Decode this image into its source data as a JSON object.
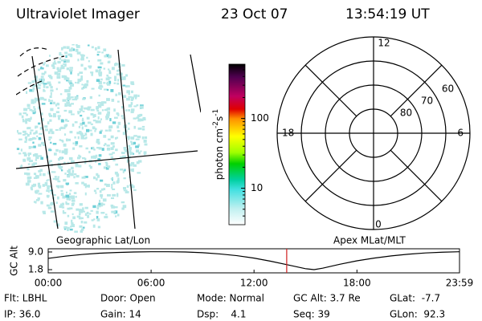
{
  "header": {
    "instrument": "Ultraviolet Imager",
    "date": "23 Oct 07",
    "time": "13:54:19 UT"
  },
  "image_panel": {
    "label": "Geographic Lat/Lon"
  },
  "colorbar": {
    "label": [
      "photon cm",
      "-2",
      "s",
      "-1"
    ],
    "scale": "log",
    "lim": [
      3,
      600
    ],
    "ticks": [
      10,
      100
    ]
  },
  "polar": {
    "label": "Apex MLat/MLT",
    "rlim": [
      90,
      50
    ],
    "lat_rings": [
      80,
      70,
      60
    ],
    "mlt_labels": [
      "12",
      "6",
      "0",
      "18"
    ]
  },
  "chart_data": {
    "type": "line",
    "ylabel": "GC Alt",
    "color": "#000000",
    "x": [
      0,
      1,
      2,
      3,
      4,
      5,
      6,
      7,
      8,
      9,
      10,
      11,
      12,
      13,
      14,
      15,
      15.5,
      16,
      17,
      18,
      19,
      20,
      21,
      22,
      23,
      23.98
    ],
    "values": [
      6.4,
      7.3,
      8.0,
      8.5,
      8.8,
      9.0,
      9.1,
      9.1,
      9.0,
      8.7,
      8.2,
      7.5,
      6.5,
      5.2,
      3.7,
      2.2,
      1.8,
      2.4,
      4.0,
      5.4,
      6.5,
      7.4,
      8.1,
      8.6,
      8.9,
      9.1
    ],
    "marker_x": 13.905,
    "marker_color": "#d02020",
    "xlim": [
      0,
      23.98
    ],
    "xticks": [
      {
        "value": 0,
        "label": "00:00"
      },
      {
        "value": 6,
        "label": "06:00"
      },
      {
        "value": 12,
        "label": "12:00"
      },
      {
        "value": 18,
        "label": "18:00"
      },
      {
        "value": 23.98,
        "label": "23:59"
      }
    ],
    "ylim": [
      0.5,
      10.3
    ],
    "yticks": [
      {
        "value": 1.8,
        "label": "1.8"
      },
      {
        "value": 9,
        "label": "9.0"
      }
    ]
  },
  "info": [
    [
      "Flt: LBHL",
      "Door: Open",
      "Mode: Normal",
      "GC Alt: 3.7 Re",
      "GLat:  -7.7"
    ],
    [
      "IP: 36.0",
      "Gain: 14",
      "Dsp:    4.1",
      "Seq: 39",
      "GLon:  92.3"
    ]
  ]
}
